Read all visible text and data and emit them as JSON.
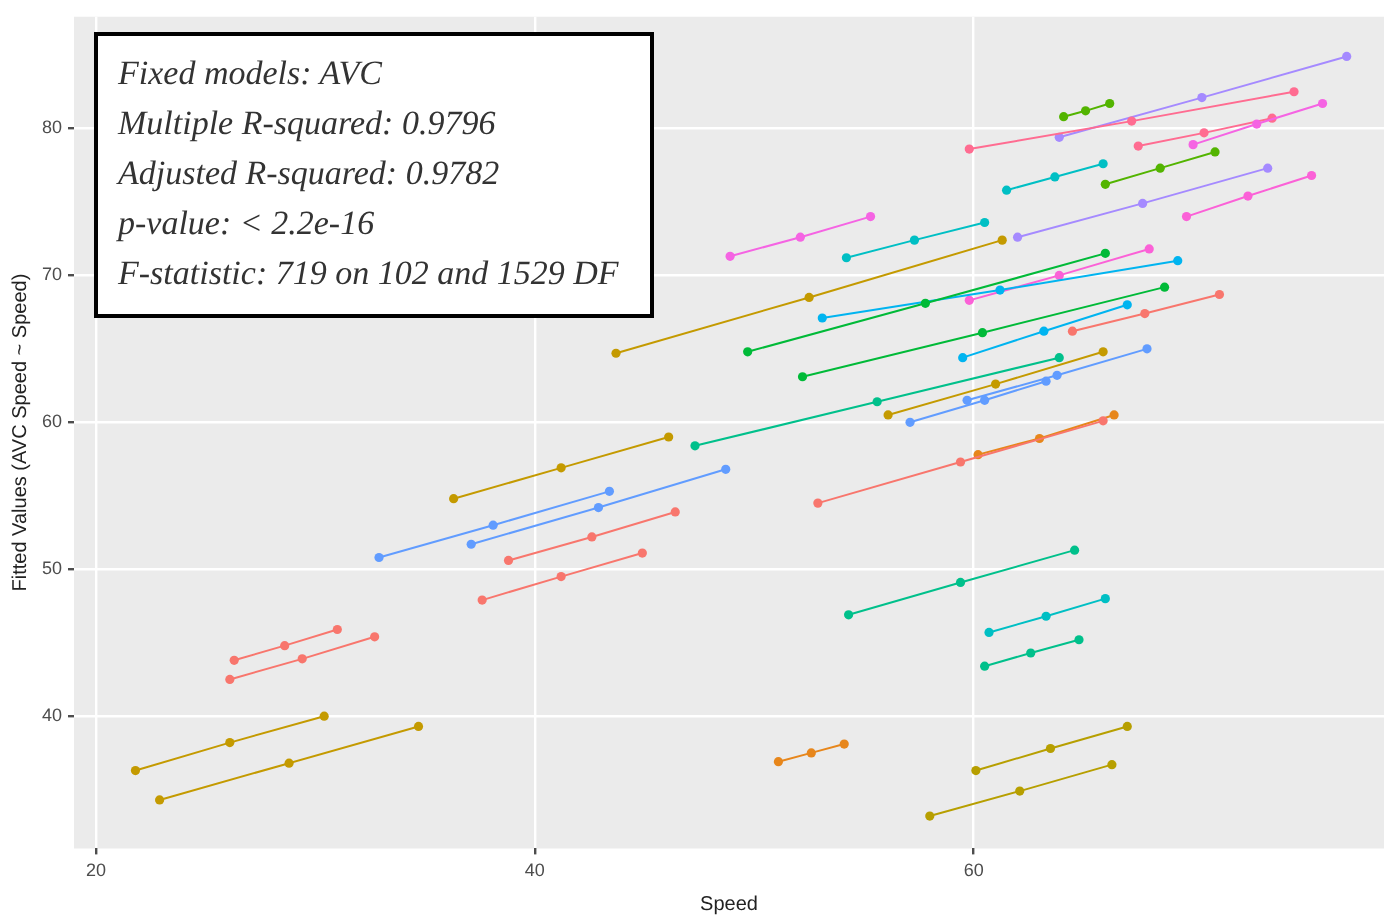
{
  "chart_data": {
    "type": "line",
    "xlabel": "Speed",
    "ylabel": "Fitted Values (AVC Speed ~ Speed)",
    "annotations": [
      "Fixed models: AVC",
      "Multiple R-squared:  0.9796",
      "Adjusted R-squared:  0.9782",
      "p-value: < 2.2e-16",
      "F-statistic:  719 on 102 and 1529 DF"
    ],
    "xlim": [
      19,
      78.7
    ],
    "ylim": [
      31,
      87.6
    ],
    "xticks": [
      20,
      40,
      60
    ],
    "yticks": [
      40,
      50,
      60,
      70,
      80
    ],
    "grid": true,
    "legend": false,
    "marker": "circle",
    "line_style": "solid",
    "series": [
      {
        "color": "#c49a00",
        "x": [
          21.8,
          26.1,
          30.4
        ],
        "values": [
          36.3,
          38.2,
          40.0
        ]
      },
      {
        "color": "#c49a00",
        "x": [
          22.9,
          28.8,
          34.7
        ],
        "values": [
          34.3,
          36.8,
          39.3
        ]
      },
      {
        "color": "#f8766d",
        "x": [
          26.3,
          28.6,
          31.0
        ],
        "values": [
          43.8,
          44.8,
          45.9
        ]
      },
      {
        "color": "#f8766d",
        "x": [
          26.1,
          29.4,
          32.7
        ],
        "values": [
          42.5,
          43.9,
          45.4
        ]
      },
      {
        "color": "#c49a00",
        "x": [
          36.3,
          41.2,
          46.1
        ],
        "values": [
          54.8,
          56.9,
          59.0
        ]
      },
      {
        "color": "#619cff",
        "x": [
          32.9,
          38.1,
          43.4
        ],
        "values": [
          50.8,
          53.0,
          55.3
        ]
      },
      {
        "color": "#619cff",
        "x": [
          37.1,
          42.9,
          48.7
        ],
        "values": [
          51.7,
          54.2,
          56.8
        ]
      },
      {
        "color": "#f8766d",
        "x": [
          38.8,
          42.6,
          46.4
        ],
        "values": [
          50.6,
          52.2,
          53.9
        ]
      },
      {
        "color": "#f8766d",
        "x": [
          37.6,
          41.2,
          44.9
        ],
        "values": [
          47.9,
          49.5,
          51.1
        ]
      },
      {
        "color": "#00c08b",
        "x": [
          54.3,
          59.4,
          64.6
        ],
        "values": [
          46.9,
          49.1,
          51.3
        ]
      },
      {
        "color": "#00bfc4",
        "x": [
          60.7,
          63.3,
          66.0
        ],
        "values": [
          45.7,
          46.8,
          48.0
        ]
      },
      {
        "color": "#00c08b",
        "x": [
          60.5,
          62.6,
          64.8
        ],
        "values": [
          43.4,
          44.3,
          45.2
        ]
      },
      {
        "color": "#e7861b",
        "x": [
          51.1,
          52.6,
          54.1
        ],
        "values": [
          36.9,
          37.5,
          38.1
        ]
      },
      {
        "color": "#b79f00",
        "x": [
          60.1,
          63.5,
          67.0
        ],
        "values": [
          36.3,
          37.8,
          39.3
        ]
      },
      {
        "color": "#b79f00",
        "x": [
          58.0,
          62.1,
          66.3
        ],
        "values": [
          33.2,
          34.9,
          36.7
        ]
      },
      {
        "color": "#f8766d",
        "x": [
          52.9,
          59.4,
          65.9
        ],
        "values": [
          54.5,
          57.3,
          60.1
        ]
      },
      {
        "color": "#c49a00",
        "x": [
          43.7,
          52.5,
          61.3
        ],
        "values": [
          64.7,
          68.5,
          72.4
        ]
      },
      {
        "color": "#f564e3",
        "x": [
          48.9,
          52.1,
          55.3
        ],
        "values": [
          71.3,
          72.6,
          74.0
        ]
      },
      {
        "color": "#00bfc4",
        "x": [
          54.2,
          57.3,
          60.5
        ],
        "values": [
          71.2,
          72.4,
          73.6
        ]
      },
      {
        "color": "#00ba38",
        "x": [
          49.7,
          57.8,
          66.0
        ],
        "values": [
          64.8,
          68.1,
          71.5
        ]
      },
      {
        "color": "#00b4f0",
        "x": [
          53.1,
          61.2,
          69.3
        ],
        "values": [
          67.1,
          69.0,
          71.0
        ]
      },
      {
        "color": "#00c08b",
        "x": [
          47.3,
          55.6,
          63.9
        ],
        "values": [
          58.4,
          61.4,
          64.4
        ]
      },
      {
        "color": "#00ba38",
        "x": [
          52.2,
          60.4,
          68.7
        ],
        "values": [
          63.1,
          66.1,
          69.2
        ]
      },
      {
        "color": "#ff6c91",
        "x": [
          59.8,
          67.2,
          74.6
        ],
        "values": [
          78.6,
          80.5,
          82.5
        ]
      },
      {
        "color": "#a58aff",
        "x": [
          63.9,
          70.4,
          77.0
        ],
        "values": [
          79.4,
          82.1,
          84.9
        ]
      },
      {
        "color": "#53b400",
        "x": [
          64.1,
          65.1,
          66.2
        ],
        "values": [
          80.8,
          81.2,
          81.7
        ]
      },
      {
        "color": "#00bfc4",
        "x": [
          61.5,
          63.7,
          65.9
        ],
        "values": [
          75.8,
          76.7,
          77.6
        ]
      },
      {
        "color": "#53b400",
        "x": [
          66.0,
          68.5,
          71.0
        ],
        "values": [
          76.2,
          77.3,
          78.4
        ]
      },
      {
        "color": "#f564e3",
        "x": [
          70.0,
          72.9,
          75.9
        ],
        "values": [
          78.9,
          80.3,
          81.7
        ]
      },
      {
        "color": "#fb61d7",
        "x": [
          69.7,
          72.5,
          75.4
        ],
        "values": [
          74.0,
          75.4,
          76.8
        ]
      },
      {
        "color": "#a58aff",
        "x": [
          62.0,
          67.7,
          73.4
        ],
        "values": [
          72.6,
          74.9,
          77.3
        ]
      },
      {
        "color": "#fb61d7",
        "x": [
          59.8,
          63.9,
          68.0
        ],
        "values": [
          68.3,
          70.0,
          71.8
        ]
      },
      {
        "color": "#f8766d",
        "x": [
          64.5,
          67.8,
          71.2
        ],
        "values": [
          66.2,
          67.4,
          68.7
        ]
      },
      {
        "color": "#00b4f0",
        "x": [
          59.5,
          63.2,
          67.0
        ],
        "values": [
          64.4,
          66.2,
          68.0
        ]
      },
      {
        "color": "#619cff",
        "x": [
          59.7,
          63.8,
          67.9
        ],
        "values": [
          61.5,
          63.2,
          65.0
        ]
      },
      {
        "color": "#c49a00",
        "x": [
          56.1,
          61.0,
          65.9
        ],
        "values": [
          60.5,
          62.6,
          64.8
        ]
      },
      {
        "color": "#619cff",
        "x": [
          57.1,
          60.5,
          63.3
        ],
        "values": [
          60.0,
          61.5,
          62.8
        ]
      },
      {
        "color": "#e7861b",
        "x": [
          60.2,
          63.0,
          66.4
        ],
        "values": [
          57.8,
          58.9,
          60.5
        ]
      },
      {
        "color": "#ff6c91",
        "x": [
          67.5,
          70.5,
          73.6
        ],
        "values": [
          78.8,
          79.7,
          80.7
        ]
      }
    ]
  }
}
